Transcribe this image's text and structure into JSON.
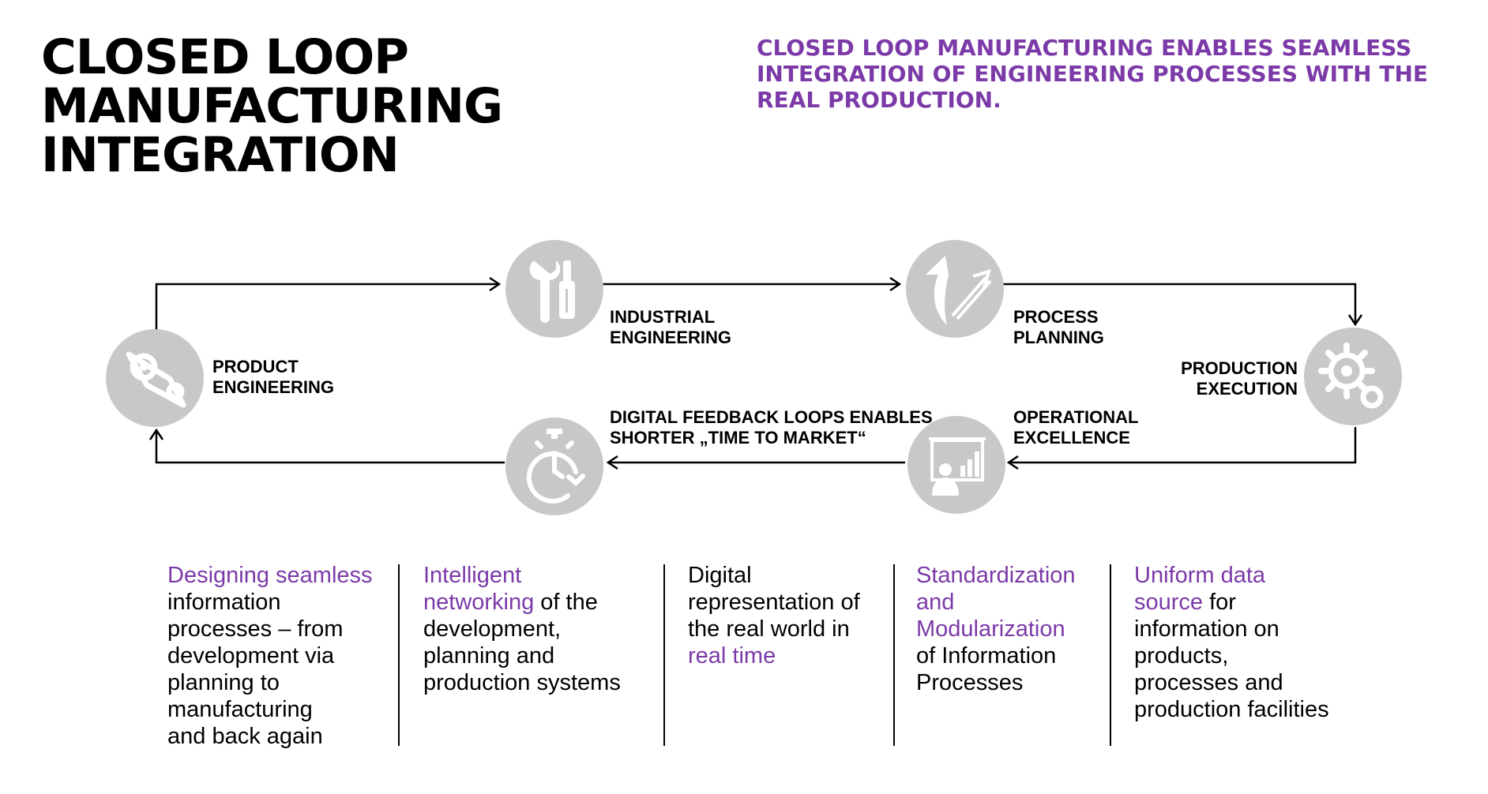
{
  "title": {
    "line1": "CLOSED LOOP",
    "line2": "MANUFACTURING",
    "line3": "INTEGRATION"
  },
  "subtitle": "CLOSED LOOP MANUFACTURING ENABLES SEAMLESS INTEGRATION OF ENGINEERING PROCESSES WITH THE REAL PRODUCTION.",
  "nodes": {
    "product_engineering": {
      "line1": "PRODUCT",
      "line2": "ENGINEERING",
      "icon": "gear-chain-icon"
    },
    "industrial_engineering": {
      "line1": "INDUSTRIAL",
      "line2": "ENGINEERING",
      "icon": "tools-icon"
    },
    "process_planning": {
      "line1": "PROCESS",
      "line2": "PLANNING",
      "icon": "arrows-icon"
    },
    "production_execution": {
      "line1": "PRODUCTION",
      "line2": "EXECUTION",
      "icon": "gears-icon"
    },
    "operational_excellence": {
      "line1": "OPERATIONAL",
      "line2": "EXCELLENCE",
      "icon": "presentation-icon"
    },
    "feedback_loops": {
      "line1": "DIGITAL FEEDBACK LOOPS ENABLES",
      "line2": "SHORTER „TIME TO MARKET“",
      "icon": "stopwatch-icon"
    }
  },
  "columns": [
    {
      "highlight": "Designing seamless",
      "rest_lines": [
        "information",
        "processes – from",
        "development via",
        "planning to",
        "manufacturing",
        "and back again"
      ]
    },
    {
      "highlight_lines": [
        "Intelligent",
        "networking"
      ],
      "inline_rest": " of the",
      "rest_lines": [
        "development,",
        "planning and",
        "production systems"
      ]
    },
    {
      "lines": [
        "Digital",
        "representation of",
        "the real world in"
      ],
      "highlight": "real time"
    },
    {
      "highlight_lines": [
        "Standardization",
        "and",
        "Modularization"
      ],
      "rest_lines": [
        "of Information",
        "Processes"
      ]
    },
    {
      "highlight_lines": [
        "Uniform data",
        "source"
      ],
      "inline_rest": " for",
      "rest_lines": [
        "information on",
        "products,",
        "processes and",
        "production facilities"
      ]
    }
  ],
  "colors": {
    "accent": "#7b3aa8",
    "icon_circle": "#c8c8c8",
    "icon_glyph": "#ffffff",
    "line": "#000000"
  }
}
